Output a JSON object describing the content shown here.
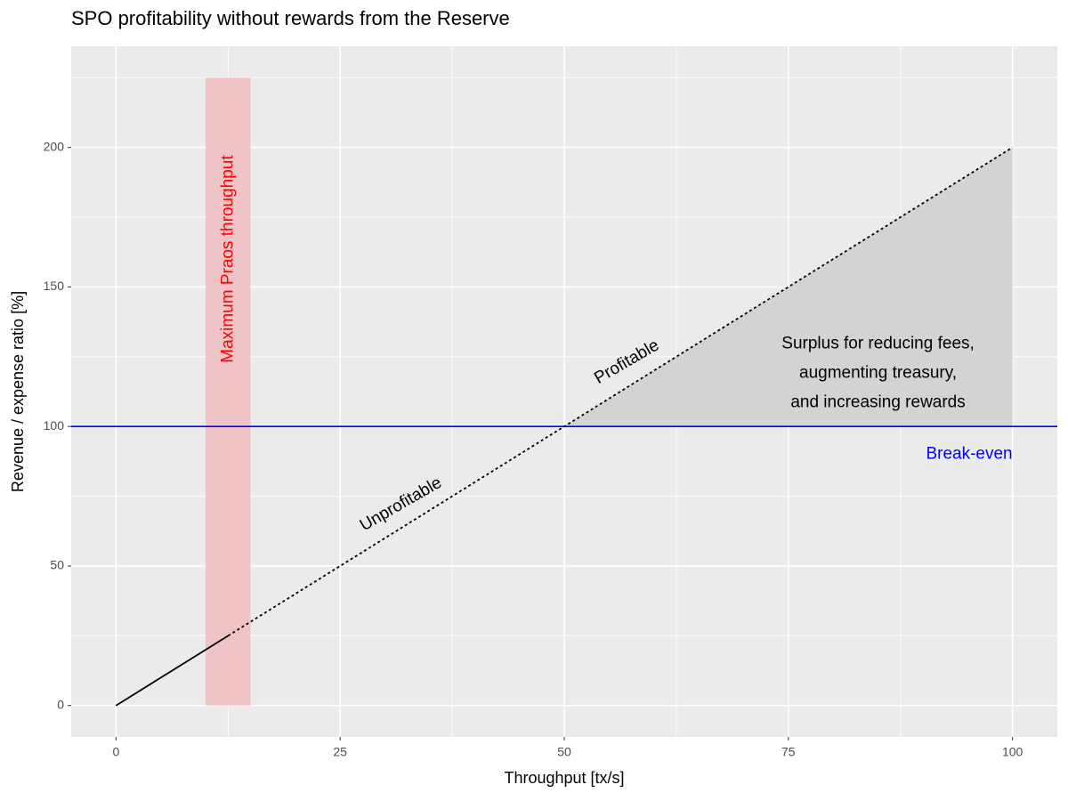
{
  "chart_data": {
    "type": "line",
    "title": "SPO profitability without rewards from the Reserve",
    "x_label": "Throughput [tx/s]",
    "y_label": "Revenue / expense ratio [%]",
    "xlim": [
      -5,
      105
    ],
    "ylim": [
      -11.25,
      236.25
    ],
    "xticks": [
      0,
      25,
      50,
      75,
      100
    ],
    "yticks": [
      0,
      50,
      100,
      150,
      200
    ],
    "grid": true,
    "band": {
      "xmin": 10,
      "xmax": 15,
      "ymin": 0,
      "ymax": 225,
      "color": "#f0c4c6",
      "label": "Maximum Praos throughput",
      "label_x": 12.5,
      "label_y": 160,
      "label_color": "#ff0000"
    },
    "area": {
      "x": [
        50,
        100,
        100
      ],
      "y": [
        100,
        200,
        100
      ],
      "color": "#d3d3d3"
    },
    "series": [
      {
        "x": [
          0,
          12.5
        ],
        "y": [
          0,
          25
        ],
        "color": "#000000",
        "dashed": false
      },
      {
        "x": [
          12.5,
          100
        ],
        "y": [
          25,
          200
        ],
        "color": "#000000",
        "dashed": true
      }
    ],
    "hline": {
      "y": 100,
      "color": "#0000ff",
      "label": "Break-even",
      "label_x": 100,
      "label_y": 90
    },
    "annotations": [
      {
        "text": "Unprofitable",
        "x": 31.8,
        "y": 72
      },
      {
        "text": "Profitable",
        "x": 57,
        "y": 123
      },
      {
        "lines": [
          "Surplus for reducing fees,",
          "augmenting treasury,",
          "and increasing rewards"
        ],
        "x": 85,
        "y": 119
      }
    ]
  }
}
